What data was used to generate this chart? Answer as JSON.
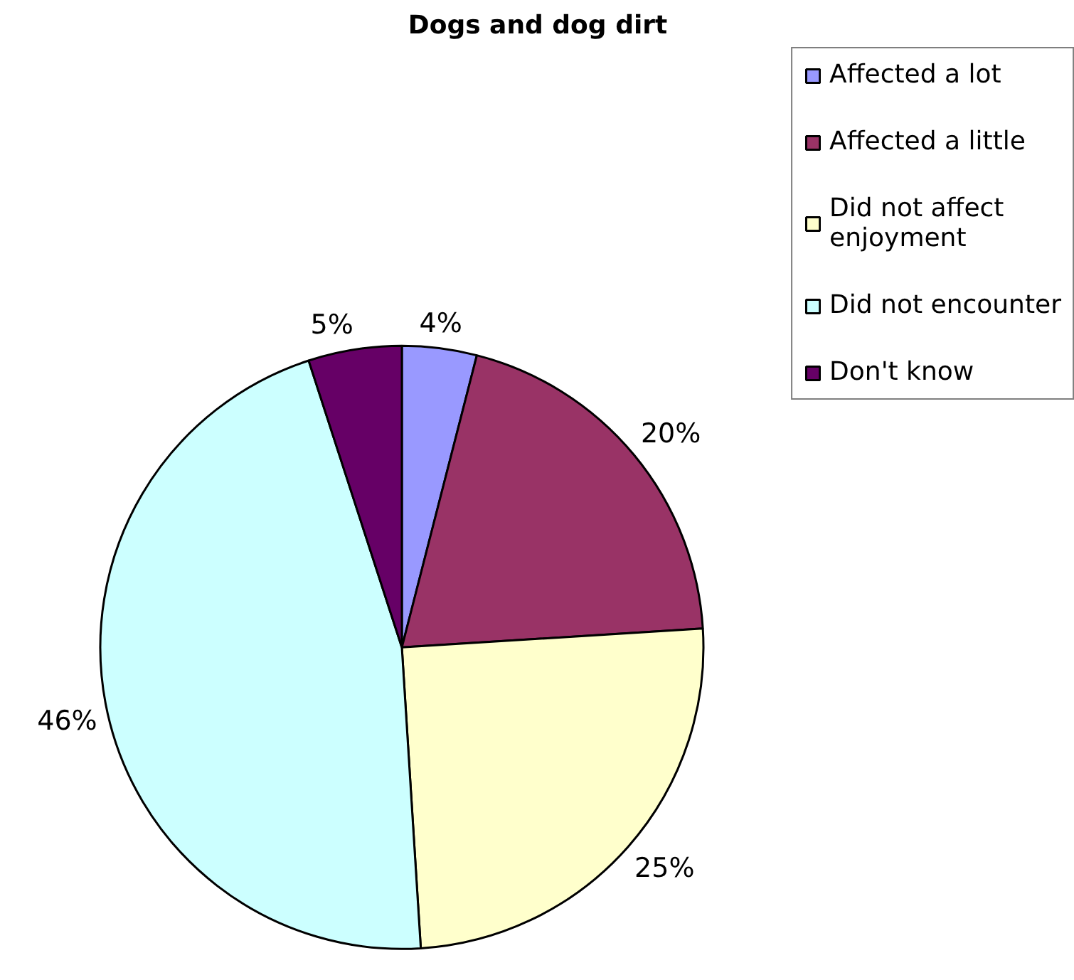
{
  "chart_data": {
    "type": "pie",
    "title": "Dogs and dog dirt",
    "categories": [
      "Affected a lot",
      "Affected a little",
      "Did not affect enjoyment",
      "Did not encounter",
      "Don't know"
    ],
    "values": [
      4,
      20,
      25,
      46,
      5
    ],
    "colors": [
      "#9999ff",
      "#993366",
      "#ffffcc",
      "#ccffff",
      "#660066"
    ],
    "value_labels": [
      "4%",
      "20%",
      "25%",
      "46%",
      "5%"
    ],
    "legend": "top right"
  }
}
